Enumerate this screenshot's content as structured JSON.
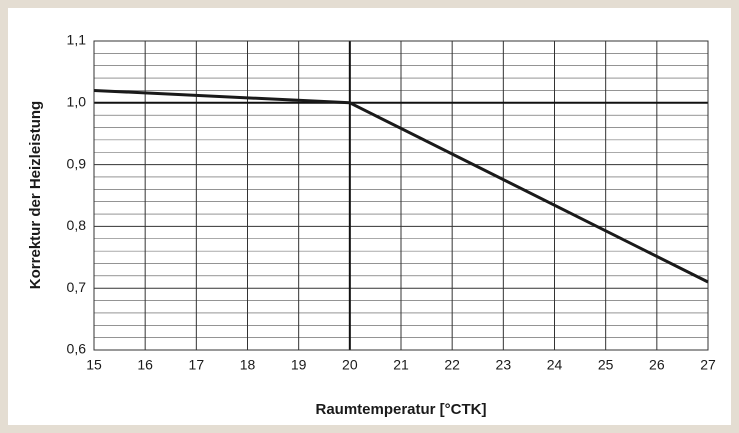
{
  "chart_data": {
    "type": "line",
    "x_label": "Raumtemperatur [°CTK]",
    "y_label": "Korrektur der Heizleistung",
    "x": [
      15,
      20,
      27
    ],
    "series": [
      {
        "color": "#1a1a1a",
        "values": [
          1.02,
          1.0,
          0.71
        ]
      }
    ],
    "xlim": [
      15,
      27
    ],
    "xticks": [
      15,
      16,
      17,
      18,
      19,
      20,
      21,
      22,
      23,
      24,
      25,
      26,
      27
    ],
    "ylim": [
      0.6,
      1.1
    ],
    "yticks": [
      {
        "value": 0.6,
        "label": "0,6"
      },
      {
        "value": 0.7,
        "label": "0,7"
      },
      {
        "value": 0.8,
        "label": "0,8"
      },
      {
        "value": 0.9,
        "label": "0,9"
      },
      {
        "value": 1.0,
        "label": "1,0"
      },
      {
        "value": 1.1,
        "label": "1,1"
      }
    ],
    "y_minor_ticks": [
      0.62,
      0.64,
      0.66,
      0.68,
      0.72,
      0.74,
      0.76,
      0.78,
      0.82,
      0.84,
      0.86,
      0.88,
      0.92,
      0.94,
      0.96,
      0.98,
      1.02,
      1.04,
      1.06,
      1.08
    ],
    "reference_lines": {
      "x": 20,
      "y": 1.0
    },
    "grid": true
  }
}
